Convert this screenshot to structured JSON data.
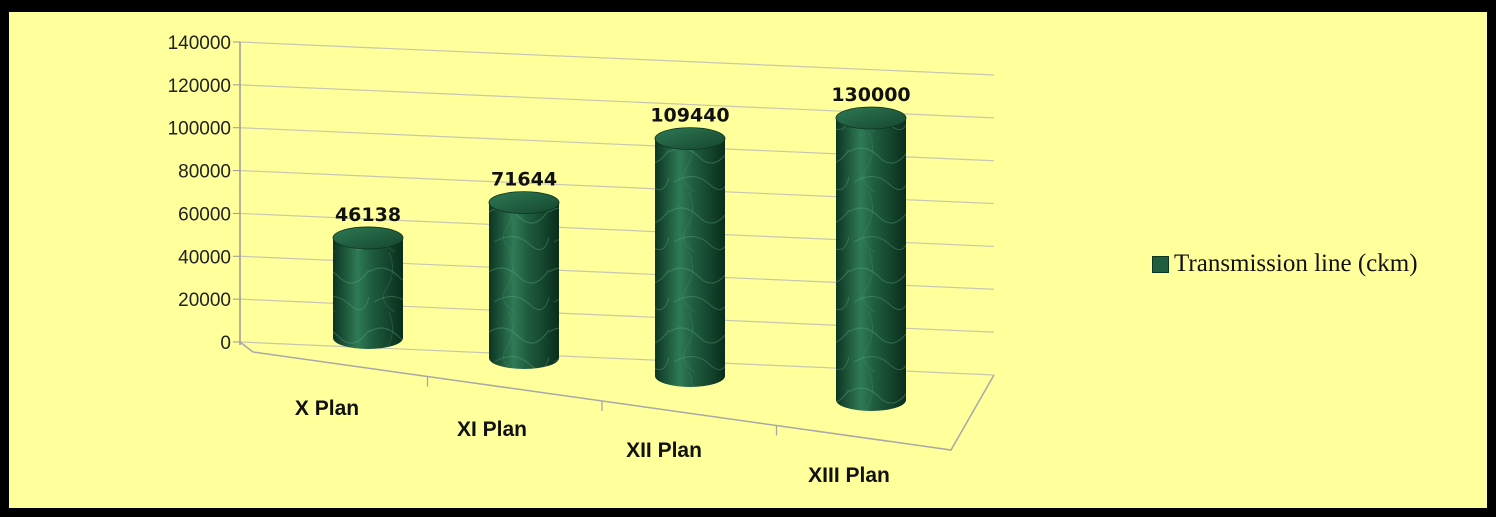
{
  "chart_data": {
    "type": "bar",
    "style": "3d-cylinder",
    "categories": [
      "X Plan",
      "XI Plan",
      "XII Plan",
      "XIII Plan"
    ],
    "series": [
      {
        "name": "Transmission line (ckm)",
        "values": [
          46138,
          71644,
          109440,
          130000
        ]
      }
    ],
    "ylim": [
      0,
      140000
    ],
    "yticks": [
      "0",
      "20000",
      "40000",
      "60000",
      "80000",
      "100000",
      "120000",
      "140000"
    ],
    "data_labels": [
      "46138",
      "71644",
      "109440",
      "130000"
    ],
    "grid": true,
    "legend": "right",
    "colors": {
      "bar": "#1f5d3f",
      "bar_light": "#3f8f66",
      "bar_dark": "#0c3522",
      "background": "#ffff9c",
      "border": "#000000"
    }
  }
}
